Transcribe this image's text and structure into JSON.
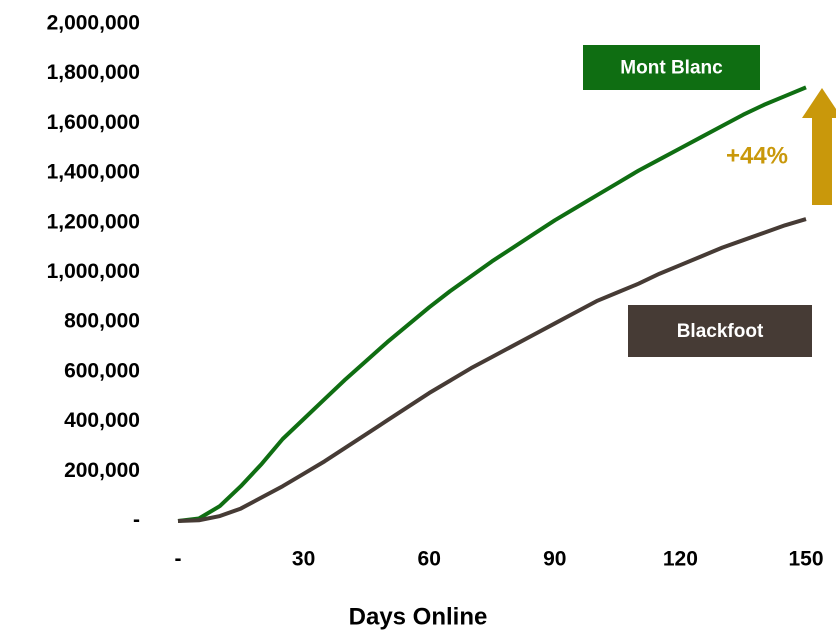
{
  "chart_data": {
    "type": "line",
    "x_label": "Days Online",
    "x": [
      0,
      5,
      10,
      15,
      20,
      25,
      30,
      35,
      40,
      45,
      50,
      55,
      60,
      65,
      70,
      75,
      80,
      85,
      90,
      95,
      100,
      105,
      110,
      115,
      120,
      125,
      130,
      135,
      140,
      145,
      150
    ],
    "series": [
      {
        "name": "Mont Blanc",
        "color": "#0f6e12",
        "values": [
          0,
          10000,
          60000,
          140000,
          230000,
          330000,
          410000,
          490000,
          570000,
          645000,
          720000,
          790000,
          860000,
          925000,
          985000,
          1045000,
          1100000,
          1155000,
          1210000,
          1260000,
          1310000,
          1360000,
          1410000,
          1455000,
          1500000,
          1545000,
          1590000,
          1635000,
          1675000,
          1710000,
          1745000
        ]
      },
      {
        "name": "Blackfoot",
        "color": "#463b35",
        "values": [
          0,
          3000,
          20000,
          50000,
          95000,
          140000,
          190000,
          240000,
          295000,
          350000,
          405000,
          460000,
          515000,
          565000,
          615000,
          660000,
          705000,
          750000,
          795000,
          840000,
          885000,
          920000,
          955000,
          995000,
          1030000,
          1065000,
          1100000,
          1130000,
          1160000,
          1190000,
          1215000
        ]
      }
    ],
    "annotation": "+44%",
    "annotation_color": "#c9980b",
    "xlim": [
      0,
      150
    ],
    "xticks": [
      {
        "value": 0,
        "label": "-"
      },
      30,
      60,
      90,
      120,
      150
    ],
    "ylim": [
      0,
      2000000
    ],
    "yticks": [
      {
        "value": 0,
        "label": "-"
      },
      {
        "value": 200000,
        "label": "200,000"
      },
      {
        "value": 400000,
        "label": "400,000"
      },
      {
        "value": 600000,
        "label": "600,000"
      },
      {
        "value": 800000,
        "label": "800,000"
      },
      {
        "value": 1000000,
        "label": "1,000,000"
      },
      {
        "value": 1200000,
        "label": "1,200,000"
      },
      {
        "value": 1400000,
        "label": "1,400,000"
      },
      {
        "value": 1600000,
        "label": "1,600,000"
      },
      {
        "value": 1800000,
        "label": "1,800,000"
      },
      {
        "value": 2000000,
        "label": "2,000,000"
      }
    ],
    "grid": false
  }
}
